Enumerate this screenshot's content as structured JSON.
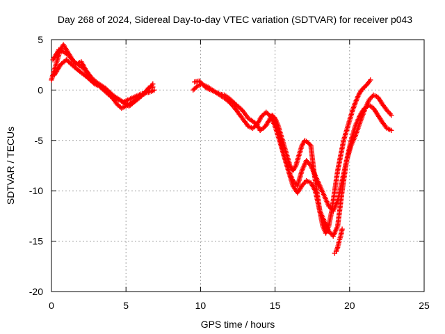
{
  "colors": {
    "series": "#ff0000",
    "axis": "#000000",
    "grid": "#a0a0a0",
    "background": "#ffffff"
  },
  "chart_data": {
    "type": "scatter",
    "title": "Day 268 of 2024, Sidereal Day-to-day VTEC variation (SDTVAR) for receiver p043",
    "xlabel": "GPS time / hours",
    "ylabel": "SDTVAR / TECUs",
    "xlim": [
      0,
      25
    ],
    "ylim": [
      -20,
      5
    ],
    "xticks": [
      0,
      5,
      10,
      15,
      20,
      25
    ],
    "yticks": [
      -20,
      -15,
      -10,
      -5,
      0,
      5
    ],
    "grid": true,
    "legend": "none",
    "marker": "plus",
    "series": [
      {
        "segments": [
          {
            "x": [
              0.0,
              0.2,
              0.4,
              0.6,
              0.8,
              1.0,
              1.2,
              1.5,
              1.8,
              2.1,
              2.4,
              2.7,
              3.0,
              3.3,
              3.6,
              3.9,
              4.2,
              4.5,
              4.8,
              5.1,
              5.4,
              5.7,
              6.0,
              6.3,
              6.6,
              6.9
            ],
            "y": [
              1.0,
              2.0,
              3.0,
              4.0,
              4.5,
              4.0,
              3.5,
              2.8,
              2.5,
              2.2,
              1.8,
              1.2,
              0.8,
              0.5,
              0.2,
              -0.2,
              -0.6,
              -0.9,
              -1.2,
              -1.0,
              -0.8,
              -0.6,
              -0.4,
              -0.3,
              -0.2,
              0.0
            ]
          },
          {
            "x": [
              0.1,
              0.3,
              0.5,
              0.8,
              1.1,
              1.4,
              1.7,
              2.0,
              2.3,
              2.6,
              2.9,
              3.2,
              3.5,
              3.8,
              4.1,
              4.4,
              4.7,
              5.0,
              5.3,
              5.6,
              5.9,
              6.2,
              6.5,
              6.8
            ],
            "y": [
              3.0,
              3.5,
              4.0,
              3.8,
              3.5,
              3.0,
              2.6,
              2.8,
              2.0,
              1.0,
              0.6,
              0.4,
              0.0,
              -0.4,
              -0.8,
              -1.4,
              -1.8,
              -1.6,
              -1.3,
              -1.0,
              -0.7,
              -0.4,
              0.2,
              0.3
            ]
          },
          {
            "x": [
              0.2,
              0.6,
              1.0,
              1.6,
              2.2,
              2.8,
              3.4,
              4.0,
              4.6,
              5.2,
              5.8,
              6.4,
              6.8
            ],
            "y": [
              1.5,
              2.5,
              3.0,
              2.2,
              1.5,
              0.8,
              0.3,
              -0.6,
              -1.0,
              -1.6,
              -0.9,
              -0.1,
              0.6
            ]
          },
          {
            "x": [
              9.5,
              9.8,
              10.1,
              10.4,
              10.7,
              11.0,
              11.3,
              11.6,
              11.9,
              12.2,
              12.5,
              12.8,
              13.0,
              13.2,
              13.4,
              13.6,
              13.8,
              14.0,
              14.2,
              14.4,
              14.6,
              14.8,
              15.0,
              15.2,
              15.4,
              15.6,
              15.8,
              16.0,
              16.2,
              16.4,
              16.6,
              16.8,
              17.0,
              17.2,
              17.4,
              17.6,
              17.8,
              18.0,
              18.2,
              18.4,
              18.6,
              18.8,
              19.0,
              19.2,
              19.4,
              19.6,
              19.8,
              20.0,
              20.2,
              20.4,
              20.6,
              20.8,
              21.0,
              21.2,
              21.4
            ],
            "y": [
              0.0,
              0.4,
              0.6,
              0.2,
              0.0,
              -0.2,
              -0.4,
              -0.5,
              -0.8,
              -1.2,
              -1.6,
              -2.0,
              -2.4,
              -2.8,
              -3.0,
              -3.2,
              -3.5,
              -4.0,
              -3.8,
              -3.5,
              -3.0,
              -2.5,
              -2.8,
              -3.5,
              -4.5,
              -5.5,
              -6.5,
              -7.5,
              -8.0,
              -7.5,
              -6.5,
              -5.5,
              -5.0,
              -5.2,
              -5.5,
              -8.0,
              -10.0,
              -12.0,
              -13.5,
              -14.2,
              -13.5,
              -12.0,
              -10.0,
              -8.0,
              -6.5,
              -5.0,
              -4.0,
              -3.0,
              -2.0,
              -1.2,
              -0.5,
              0.0,
              0.3,
              0.6,
              1.0
            ]
          },
          {
            "x": [
              9.6,
              9.9,
              10.2,
              10.5,
              10.8,
              11.1,
              11.4,
              11.7,
              12.0,
              12.3,
              12.6,
              12.9,
              13.2,
              13.5,
              13.8,
              14.1,
              14.4,
              14.7,
              15.0,
              15.3,
              15.6,
              15.9,
              16.2,
              16.5,
              16.8,
              17.1,
              17.4,
              17.7,
              18.0,
              18.3,
              18.6,
              18.9,
              19.2,
              19.5,
              19.8,
              20.1,
              20.4,
              20.7,
              21.0,
              21.3,
              21.6,
              21.9,
              22.2,
              22.5,
              22.8
            ],
            "y": [
              0.8,
              0.9,
              0.5,
              0.3,
              0.0,
              -0.3,
              -0.6,
              -0.9,
              -1.3,
              -1.8,
              -2.4,
              -3.0,
              -3.6,
              -3.8,
              -3.4,
              -2.6,
              -2.2,
              -2.6,
              -3.6,
              -5.0,
              -6.5,
              -8.0,
              -9.0,
              -9.5,
              -8.0,
              -7.0,
              -7.5,
              -8.5,
              -9.5,
              -10.5,
              -11.5,
              -12.0,
              -11.0,
              -9.0,
              -7.0,
              -5.5,
              -4.5,
              -3.2,
              -2.0,
              -1.0,
              -0.5,
              -0.7,
              -1.4,
              -2.0,
              -2.5
            ]
          },
          {
            "x": [
              15.0,
              15.3,
              15.6,
              15.9,
              16.2,
              16.5,
              16.8,
              17.1,
              17.4,
              17.7,
              18.0,
              18.3,
              18.6,
              18.9,
              19.2,
              19.5,
              19.8,
              20.1,
              20.4,
              20.7,
              21.0,
              21.3,
              21.6,
              21.9,
              22.2,
              22.5,
              22.8
            ],
            "y": [
              -3.0,
              -4.5,
              -6.5,
              -8.0,
              -9.5,
              -10.2,
              -9.5,
              -9.0,
              -9.2,
              -10.0,
              -12.0,
              -13.0,
              -14.0,
              -14.5,
              -13.5,
              -10.0,
              -7.0,
              -5.0,
              -3.5,
              -2.5,
              -1.8,
              -1.5,
              -1.8,
              -2.5,
              -3.2,
              -3.8,
              -4.0
            ]
          },
          {
            "x": [
              19.0,
              19.1,
              19.2,
              19.3,
              19.4,
              19.5
            ],
            "y": [
              -16.2,
              -16.0,
              -15.6,
              -15.0,
              -14.5,
              -13.8
            ]
          }
        ]
      }
    ]
  }
}
